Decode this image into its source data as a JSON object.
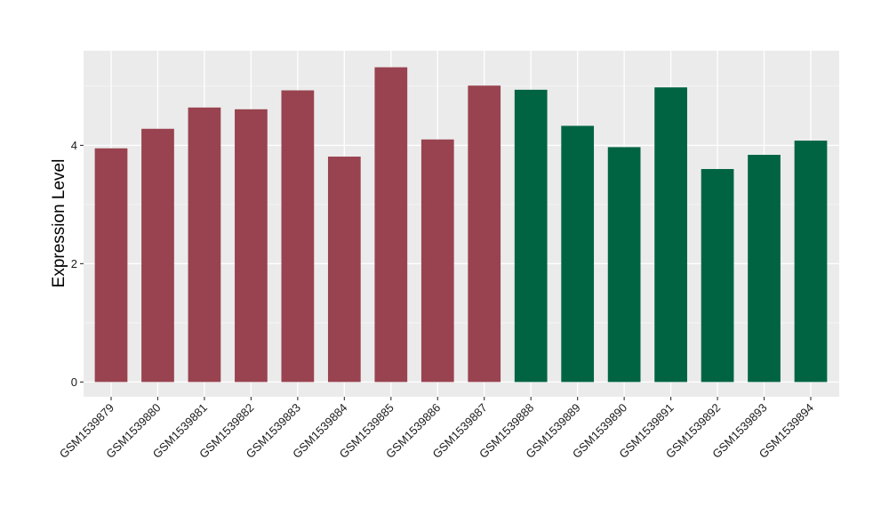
{
  "chart_data": {
    "type": "bar",
    "ylabel": "Expression Level",
    "xlabel": "",
    "ylim": [
      -0.25,
      5.6
    ],
    "yticks": [
      0,
      2,
      4
    ],
    "categories": [
      "GSM1539879",
      "GSM1539880",
      "GSM1539881",
      "GSM1539882",
      "GSM1539883",
      "GSM1539884",
      "GSM1539885",
      "GSM1539886",
      "GSM1539887",
      "GSM1539888",
      "GSM1539889",
      "GSM1539890",
      "GSM1539891",
      "GSM1539892",
      "GSM1539893",
      "GSM1539894"
    ],
    "values": [
      3.95,
      4.28,
      4.64,
      4.61,
      4.93,
      3.81,
      5.32,
      4.1,
      5.01,
      4.94,
      4.33,
      3.97,
      4.98,
      3.6,
      3.84,
      4.08
    ],
    "groups": [
      0,
      0,
      0,
      0,
      0,
      0,
      0,
      0,
      0,
      1,
      1,
      1,
      1,
      1,
      1,
      1
    ],
    "group_colors": [
      "#994350",
      "#006443"
    ],
    "grid": true,
    "panel_background": "#ebebeb"
  }
}
